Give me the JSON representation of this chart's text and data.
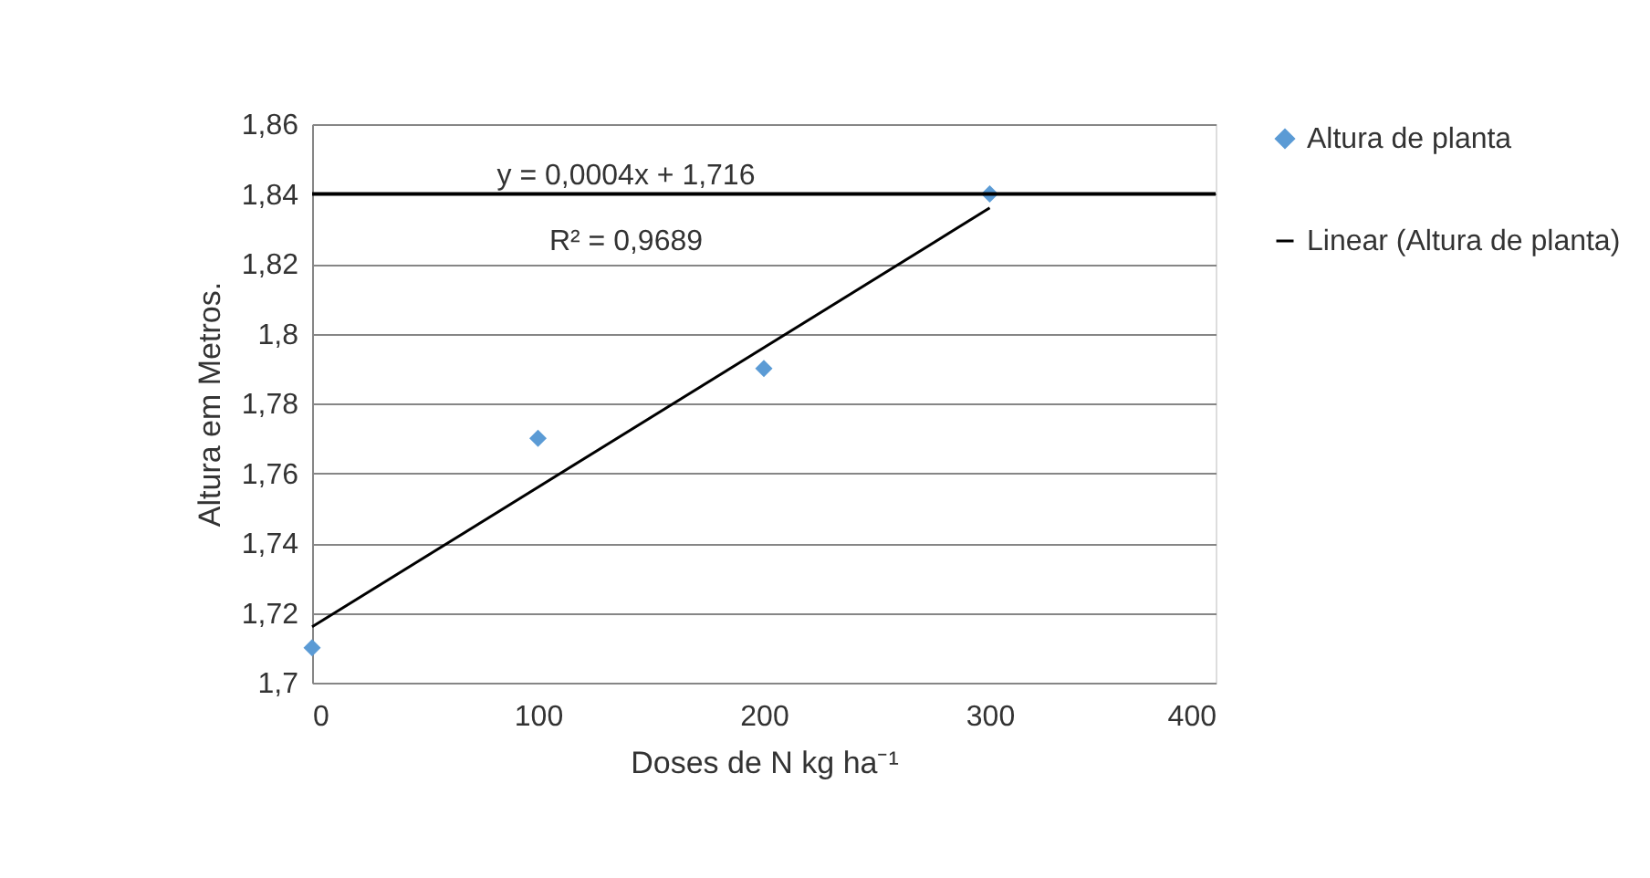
{
  "chart_data": {
    "type": "scatter",
    "xlabel": "Doses de N kg ha⁻¹",
    "ylabel": "Altura em Metros.",
    "series": [
      {
        "name": "Altura de planta",
        "color": "#5b9bd5",
        "marker": "diamond",
        "x": [
          0,
          100,
          200,
          300
        ],
        "values": [
          1.71,
          1.77,
          1.79,
          1.84
        ]
      },
      {
        "name": "Linear (Altura de planta)",
        "type": "line",
        "color": "#000000",
        "line_style": "solid",
        "x": [
          0,
          300
        ],
        "values": [
          1.716,
          1.836
        ]
      }
    ],
    "xlim": [
      0,
      400
    ],
    "xticks": [
      0,
      100,
      200,
      300,
      400
    ],
    "ylim": [
      1.7,
      1.86
    ],
    "yticks": [
      {
        "value": 1.7,
        "label": "1,7"
      },
      {
        "value": 1.72,
        "label": "1,72"
      },
      {
        "value": 1.74,
        "label": "1,74"
      },
      {
        "value": 1.76,
        "label": "1,76"
      },
      {
        "value": 1.78,
        "label": "1,78"
      },
      {
        "value": 1.8,
        "label": "1,8"
      },
      {
        "value": 1.82,
        "label": "1,82"
      },
      {
        "value": 1.84,
        "label": "1,84"
      },
      {
        "value": 1.86,
        "label": "1,86"
      }
    ],
    "ref_lines": [
      {
        "axis": "y",
        "value": 1.84,
        "color": "#000000",
        "line_style": "solid"
      }
    ],
    "annotations": [
      "y = 0,0004x + 1,716",
      "R² = 0,9689"
    ],
    "grid": "y",
    "legend": "right"
  }
}
